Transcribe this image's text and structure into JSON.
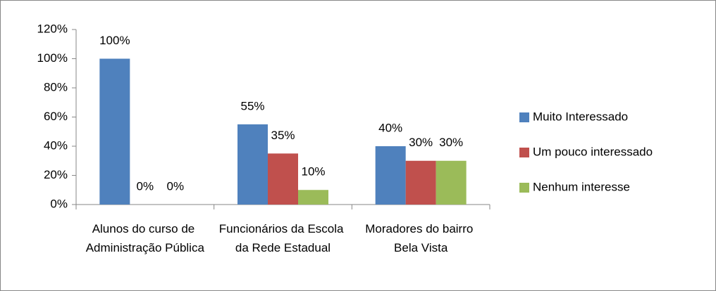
{
  "chart_data": {
    "type": "bar",
    "categories": [
      "Alunos do curso de Administração Pública",
      "Funcionários da Escola da Rede Estadual",
      "Moradores do bairro Bela Vista"
    ],
    "series": [
      {
        "name": "Muito Interessado",
        "color": "#4f81bd",
        "values": [
          100,
          55,
          40
        ],
        "value_labels": [
          "100%",
          "55%",
          "40%"
        ]
      },
      {
        "name": "Um pouco interessado",
        "color": "#c0504d",
        "values": [
          0,
          35,
          30
        ],
        "value_labels": [
          "0%",
          "35%",
          "30%"
        ]
      },
      {
        "name": "Nenhum interesse",
        "color": "#9bbb59",
        "values": [
          0,
          10,
          30
        ],
        "value_labels": [
          "0%",
          "10%",
          "30%"
        ]
      }
    ],
    "ylim": [
      0,
      120
    ],
    "yticks": [
      {
        "value": 0,
        "label": "0%"
      },
      {
        "value": 20,
        "label": "20%"
      },
      {
        "value": 40,
        "label": "40%"
      },
      {
        "value": 60,
        "label": "60%"
      },
      {
        "value": 80,
        "label": "80%"
      },
      {
        "value": 100,
        "label": "100%"
      },
      {
        "value": 120,
        "label": "120%"
      }
    ],
    "grid": false,
    "legend": "right"
  }
}
